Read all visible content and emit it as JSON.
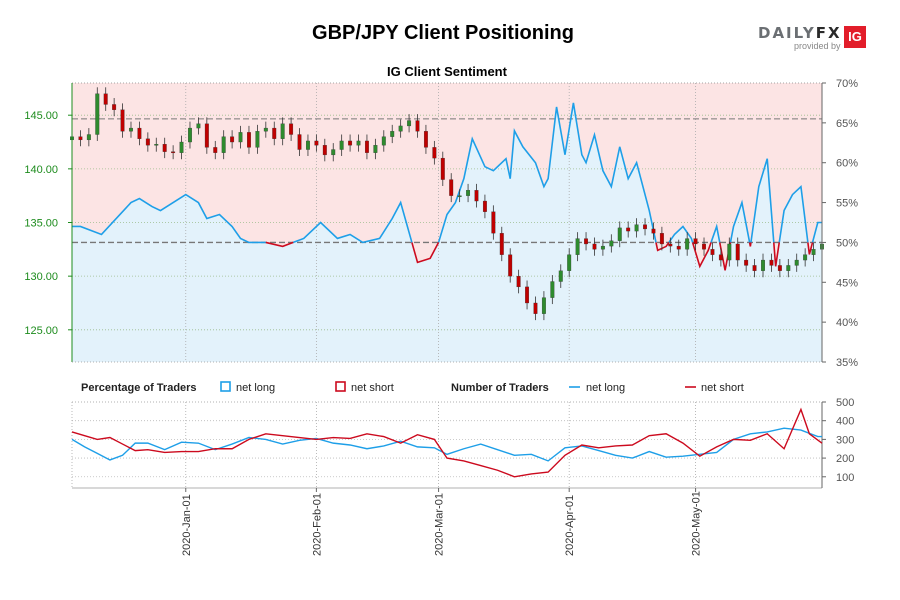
{
  "chart_data": {
    "type": "line",
    "title": "GBP/JPY Client Positioning",
    "subtitle": "IG Client Sentiment",
    "logo": {
      "text_left": "DAILY",
      "text_right": "FX",
      "provided_by": "provided by",
      "badge": "IG"
    },
    "colors": {
      "long_fill": "#e3f2fb",
      "short_fill": "#fce4e4",
      "net_long": "#1e9fe8",
      "net_short": "#cc0a1e",
      "candle_up": "#2e8b2e",
      "candle_down": "#c00000",
      "price_axis": "#1e8c1e",
      "pct_axis": "#555555"
    },
    "price_axis": {
      "min": 122,
      "max": 148,
      "ticks": [
        125,
        130,
        135,
        140,
        145
      ],
      "tick_labels": [
        "125.00",
        "130.00",
        "135.00",
        "140.00",
        "145.00"
      ]
    },
    "percent_axis": {
      "min": 35,
      "max": 70,
      "ticks": [
        35,
        40,
        45,
        50,
        55,
        60,
        65,
        70
      ],
      "tick_labels": [
        "35%",
        "40%",
        "45%",
        "50%",
        "55%",
        "60%",
        "65%",
        "70%"
      ],
      "midline": 50,
      "upper_reference": 65.5
    },
    "count_axis": {
      "min": 40,
      "max": 500,
      "ticks": [
        100,
        200,
        300,
        400,
        500
      ],
      "tick_labels": [
        "100",
        "200",
        "300",
        "400",
        "500"
      ]
    },
    "date_range": {
      "start": "2019-12-05",
      "end": "2020-05-31"
    },
    "date_ticks": [
      "2020-Jan-01",
      "2020-Feb-01",
      "2020-Mar-01",
      "2020-Apr-01",
      "2020-May-01"
    ],
    "legend": {
      "percentage_title": "Percentage of Traders",
      "number_title": "Number of Traders",
      "net_long": "net long",
      "net_short": "net short"
    },
    "grid": true,
    "net_long_pct": [
      [
        "2019-12-05",
        52
      ],
      [
        "2019-12-07",
        52
      ],
      [
        "2019-12-12",
        51
      ],
      [
        "2019-12-19",
        55
      ],
      [
        "2019-12-21",
        55.5
      ],
      [
        "2019-12-24",
        54.5
      ],
      [
        "2019-12-26",
        54
      ],
      [
        "2019-12-29",
        55
      ],
      [
        "2020-01-01",
        56
      ],
      [
        "2020-01-04",
        55
      ],
      [
        "2020-01-06",
        53
      ],
      [
        "2020-01-09",
        53.5
      ],
      [
        "2020-01-12",
        52
      ],
      [
        "2020-01-14",
        50.5
      ],
      [
        "2020-01-16",
        50
      ],
      [
        "2020-01-20",
        50
      ],
      [
        "2020-01-24",
        49.5
      ],
      [
        "2020-01-29",
        50.5
      ],
      [
        "2020-02-02",
        52.5
      ],
      [
        "2020-02-06",
        50.5
      ],
      [
        "2020-02-09",
        51
      ],
      [
        "2020-02-12",
        50
      ],
      [
        "2020-02-16",
        50.5
      ],
      [
        "2020-02-19",
        53
      ],
      [
        "2020-02-21",
        55
      ],
      [
        "2020-02-25",
        47.5
      ],
      [
        "2020-02-28",
        48
      ],
      [
        "2020-03-01",
        50
      ],
      [
        "2020-03-03",
        53.5
      ],
      [
        "2020-03-05",
        55
      ],
      [
        "2020-03-07",
        58
      ],
      [
        "2020-03-09",
        63
      ],
      [
        "2020-03-12",
        59.5
      ],
      [
        "2020-03-14",
        59
      ],
      [
        "2020-03-17",
        60.5
      ],
      [
        "2020-03-18",
        58
      ],
      [
        "2020-03-19",
        64
      ],
      [
        "2020-03-21",
        62
      ],
      [
        "2020-03-24",
        60
      ],
      [
        "2020-03-26",
        57
      ],
      [
        "2020-03-27",
        58
      ],
      [
        "2020-03-29",
        67
      ],
      [
        "2020-03-31",
        61
      ],
      [
        "2020-04-02",
        67.5
      ],
      [
        "2020-04-04",
        61
      ],
      [
        "2020-04-05",
        60
      ],
      [
        "2020-04-07",
        63.5
      ],
      [
        "2020-04-09",
        59
      ],
      [
        "2020-04-11",
        57
      ],
      [
        "2020-04-13",
        62
      ],
      [
        "2020-04-15",
        58
      ],
      [
        "2020-04-17",
        60
      ],
      [
        "2020-04-20",
        54
      ],
      [
        "2020-04-22",
        49
      ],
      [
        "2020-04-24",
        49.5
      ],
      [
        "2020-04-26",
        51
      ],
      [
        "2020-04-28",
        52
      ],
      [
        "2020-04-30",
        50.5
      ],
      [
        "2020-05-02",
        47
      ],
      [
        "2020-05-04",
        49
      ],
      [
        "2020-05-06",
        52
      ],
      [
        "2020-05-08",
        46.5
      ],
      [
        "2020-05-10",
        52
      ],
      [
        "2020-05-12",
        55
      ],
      [
        "2020-05-14",
        49.5
      ],
      [
        "2020-05-16",
        57
      ],
      [
        "2020-05-18",
        60.5
      ],
      [
        "2020-05-20",
        47
      ],
      [
        "2020-05-22",
        54
      ],
      [
        "2020-05-24",
        56
      ],
      [
        "2020-05-26",
        57
      ],
      [
        "2020-05-28",
        48.5
      ],
      [
        "2020-05-30",
        52.5
      ],
      [
        "2020-05-31",
        52.5
      ]
    ],
    "price_candles": [
      [
        "2019-12-05",
        143
      ],
      [
        "2019-12-07",
        142.7
      ],
      [
        "2019-12-09",
        143.2
      ],
      [
        "2019-12-11",
        147
      ],
      [
        "2019-12-13",
        146
      ],
      [
        "2019-12-15",
        145.5
      ],
      [
        "2019-12-17",
        143.5
      ],
      [
        "2019-12-19",
        143.8
      ],
      [
        "2019-12-21",
        142.8
      ],
      [
        "2019-12-23",
        142.2
      ],
      [
        "2019-12-25",
        142.3
      ],
      [
        "2019-12-27",
        141.6
      ],
      [
        "2019-12-29",
        141.5
      ],
      [
        "2019-12-31",
        142.5
      ],
      [
        "2020-01-02",
        143.8
      ],
      [
        "2020-01-04",
        144.2
      ],
      [
        "2020-01-06",
        142
      ],
      [
        "2020-01-08",
        141.5
      ],
      [
        "2020-01-10",
        143
      ],
      [
        "2020-01-12",
        142.5
      ],
      [
        "2020-01-14",
        143.4
      ],
      [
        "2020-01-16",
        142
      ],
      [
        "2020-01-18",
        143.5
      ],
      [
        "2020-01-20",
        143.8
      ],
      [
        "2020-01-22",
        142.8
      ],
      [
        "2020-01-24",
        144.2
      ],
      [
        "2020-01-26",
        143.2
      ],
      [
        "2020-01-28",
        141.8
      ],
      [
        "2020-01-30",
        142.6
      ],
      [
        "2020-02-01",
        142.2
      ],
      [
        "2020-02-03",
        141.3
      ],
      [
        "2020-02-05",
        141.8
      ],
      [
        "2020-02-07",
        142.6
      ],
      [
        "2020-02-09",
        142.2
      ],
      [
        "2020-02-11",
        142.6
      ],
      [
        "2020-02-13",
        141.5
      ],
      [
        "2020-02-15",
        142.2
      ],
      [
        "2020-02-17",
        143
      ],
      [
        "2020-02-19",
        143.5
      ],
      [
        "2020-02-21",
        144
      ],
      [
        "2020-02-23",
        144.5
      ],
      [
        "2020-02-25",
        143.5
      ],
      [
        "2020-02-27",
        142
      ],
      [
        "2020-02-29",
        141
      ],
      [
        "2020-03-02",
        139
      ],
      [
        "2020-03-04",
        137.5
      ],
      [
        "2020-03-06",
        137.5
      ],
      [
        "2020-03-08",
        138
      ],
      [
        "2020-03-10",
        137
      ],
      [
        "2020-03-12",
        136
      ],
      [
        "2020-03-14",
        134
      ],
      [
        "2020-03-16",
        132
      ],
      [
        "2020-03-18",
        130
      ],
      [
        "2020-03-20",
        129
      ],
      [
        "2020-03-22",
        127.5
      ],
      [
        "2020-03-24",
        126.5
      ],
      [
        "2020-03-26",
        128
      ],
      [
        "2020-03-28",
        129.5
      ],
      [
        "2020-03-30",
        130.5
      ],
      [
        "2020-04-01",
        132
      ],
      [
        "2020-04-03",
        133.5
      ],
      [
        "2020-04-05",
        133
      ],
      [
        "2020-04-07",
        132.5
      ],
      [
        "2020-04-09",
        132.8
      ],
      [
        "2020-04-11",
        133.3
      ],
      [
        "2020-04-13",
        134.5
      ],
      [
        "2020-04-15",
        134.2
      ],
      [
        "2020-04-17",
        134.8
      ],
      [
        "2020-04-19",
        134.4
      ],
      [
        "2020-04-21",
        134
      ],
      [
        "2020-04-23",
        133
      ],
      [
        "2020-04-25",
        132.8
      ],
      [
        "2020-04-27",
        132.5
      ],
      [
        "2020-04-29",
        133.5
      ],
      [
        "2020-05-01",
        133
      ],
      [
        "2020-05-03",
        132.5
      ],
      [
        "2020-05-05",
        132
      ],
      [
        "2020-05-07",
        131.5
      ],
      [
        "2020-05-09",
        133
      ],
      [
        "2020-05-11",
        131.5
      ],
      [
        "2020-05-13",
        131
      ],
      [
        "2020-05-15",
        130.5
      ],
      [
        "2020-05-17",
        131.5
      ],
      [
        "2020-05-19",
        131
      ],
      [
        "2020-05-21",
        130.5
      ],
      [
        "2020-05-23",
        131
      ],
      [
        "2020-05-25",
        131.5
      ],
      [
        "2020-05-27",
        132
      ],
      [
        "2020-05-29",
        132.5
      ],
      [
        "2020-05-31",
        133
      ]
    ],
    "count_long": [
      [
        "2019-12-05",
        300
      ],
      [
        "2019-12-08",
        260
      ],
      [
        "2019-12-11",
        225
      ],
      [
        "2019-12-14",
        190
      ],
      [
        "2019-12-17",
        215
      ],
      [
        "2019-12-20",
        280
      ],
      [
        "2019-12-23",
        280
      ],
      [
        "2019-12-27",
        245
      ],
      [
        "2019-12-31",
        285
      ],
      [
        "2020-01-04",
        280
      ],
      [
        "2020-01-08",
        245
      ],
      [
        "2020-01-12",
        275
      ],
      [
        "2020-01-16",
        310
      ],
      [
        "2020-01-20",
        300
      ],
      [
        "2020-01-24",
        275
      ],
      [
        "2020-01-28",
        295
      ],
      [
        "2020-02-01",
        305
      ],
      [
        "2020-02-05",
        280
      ],
      [
        "2020-02-09",
        270
      ],
      [
        "2020-02-13",
        250
      ],
      [
        "2020-02-17",
        265
      ],
      [
        "2020-02-21",
        290
      ],
      [
        "2020-02-25",
        260
      ],
      [
        "2020-02-29",
        255
      ],
      [
        "2020-03-03",
        220
      ],
      [
        "2020-03-07",
        250
      ],
      [
        "2020-03-11",
        275
      ],
      [
        "2020-03-15",
        245
      ],
      [
        "2020-03-19",
        215
      ],
      [
        "2020-03-23",
        220
      ],
      [
        "2020-03-27",
        185
      ],
      [
        "2020-03-31",
        255
      ],
      [
        "2020-04-04",
        265
      ],
      [
        "2020-04-08",
        240
      ],
      [
        "2020-04-12",
        215
      ],
      [
        "2020-04-16",
        200
      ],
      [
        "2020-04-20",
        235
      ],
      [
        "2020-04-24",
        205
      ],
      [
        "2020-04-28",
        210
      ],
      [
        "2020-05-02",
        220
      ],
      [
        "2020-05-06",
        230
      ],
      [
        "2020-05-10",
        300
      ],
      [
        "2020-05-14",
        330
      ],
      [
        "2020-05-18",
        340
      ],
      [
        "2020-05-22",
        360
      ],
      [
        "2020-05-26",
        350
      ],
      [
        "2020-05-30",
        315
      ],
      [
        "2020-05-31",
        315
      ]
    ],
    "count_short": [
      [
        "2019-12-05",
        340
      ],
      [
        "2019-12-08",
        320
      ],
      [
        "2019-12-11",
        300
      ],
      [
        "2019-12-14",
        310
      ],
      [
        "2019-12-17",
        275
      ],
      [
        "2019-12-20",
        240
      ],
      [
        "2019-12-23",
        245
      ],
      [
        "2019-12-27",
        230
      ],
      [
        "2019-12-31",
        235
      ],
      [
        "2020-01-04",
        235
      ],
      [
        "2020-01-08",
        250
      ],
      [
        "2020-01-12",
        250
      ],
      [
        "2020-01-16",
        300
      ],
      [
        "2020-01-20",
        330
      ],
      [
        "2020-01-24",
        320
      ],
      [
        "2020-01-28",
        310
      ],
      [
        "2020-02-01",
        300
      ],
      [
        "2020-02-05",
        310
      ],
      [
        "2020-02-09",
        305
      ],
      [
        "2020-02-13",
        330
      ],
      [
        "2020-02-17",
        315
      ],
      [
        "2020-02-21",
        280
      ],
      [
        "2020-02-25",
        325
      ],
      [
        "2020-02-29",
        300
      ],
      [
        "2020-03-03",
        200
      ],
      [
        "2020-03-07",
        185
      ],
      [
        "2020-03-11",
        160
      ],
      [
        "2020-03-15",
        135
      ],
      [
        "2020-03-19",
        100
      ],
      [
        "2020-03-23",
        115
      ],
      [
        "2020-03-27",
        125
      ],
      [
        "2020-03-31",
        215
      ],
      [
        "2020-04-04",
        270
      ],
      [
        "2020-04-08",
        255
      ],
      [
        "2020-04-12",
        265
      ],
      [
        "2020-04-16",
        270
      ],
      [
        "2020-04-20",
        320
      ],
      [
        "2020-04-24",
        330
      ],
      [
        "2020-04-28",
        280
      ],
      [
        "2020-05-02",
        210
      ],
      [
        "2020-05-06",
        260
      ],
      [
        "2020-05-10",
        300
      ],
      [
        "2020-05-14",
        295
      ],
      [
        "2020-05-18",
        330
      ],
      [
        "2020-05-22",
        250
      ],
      [
        "2020-05-26",
        460
      ],
      [
        "2020-05-28",
        330
      ],
      [
        "2020-05-31",
        280
      ]
    ]
  }
}
